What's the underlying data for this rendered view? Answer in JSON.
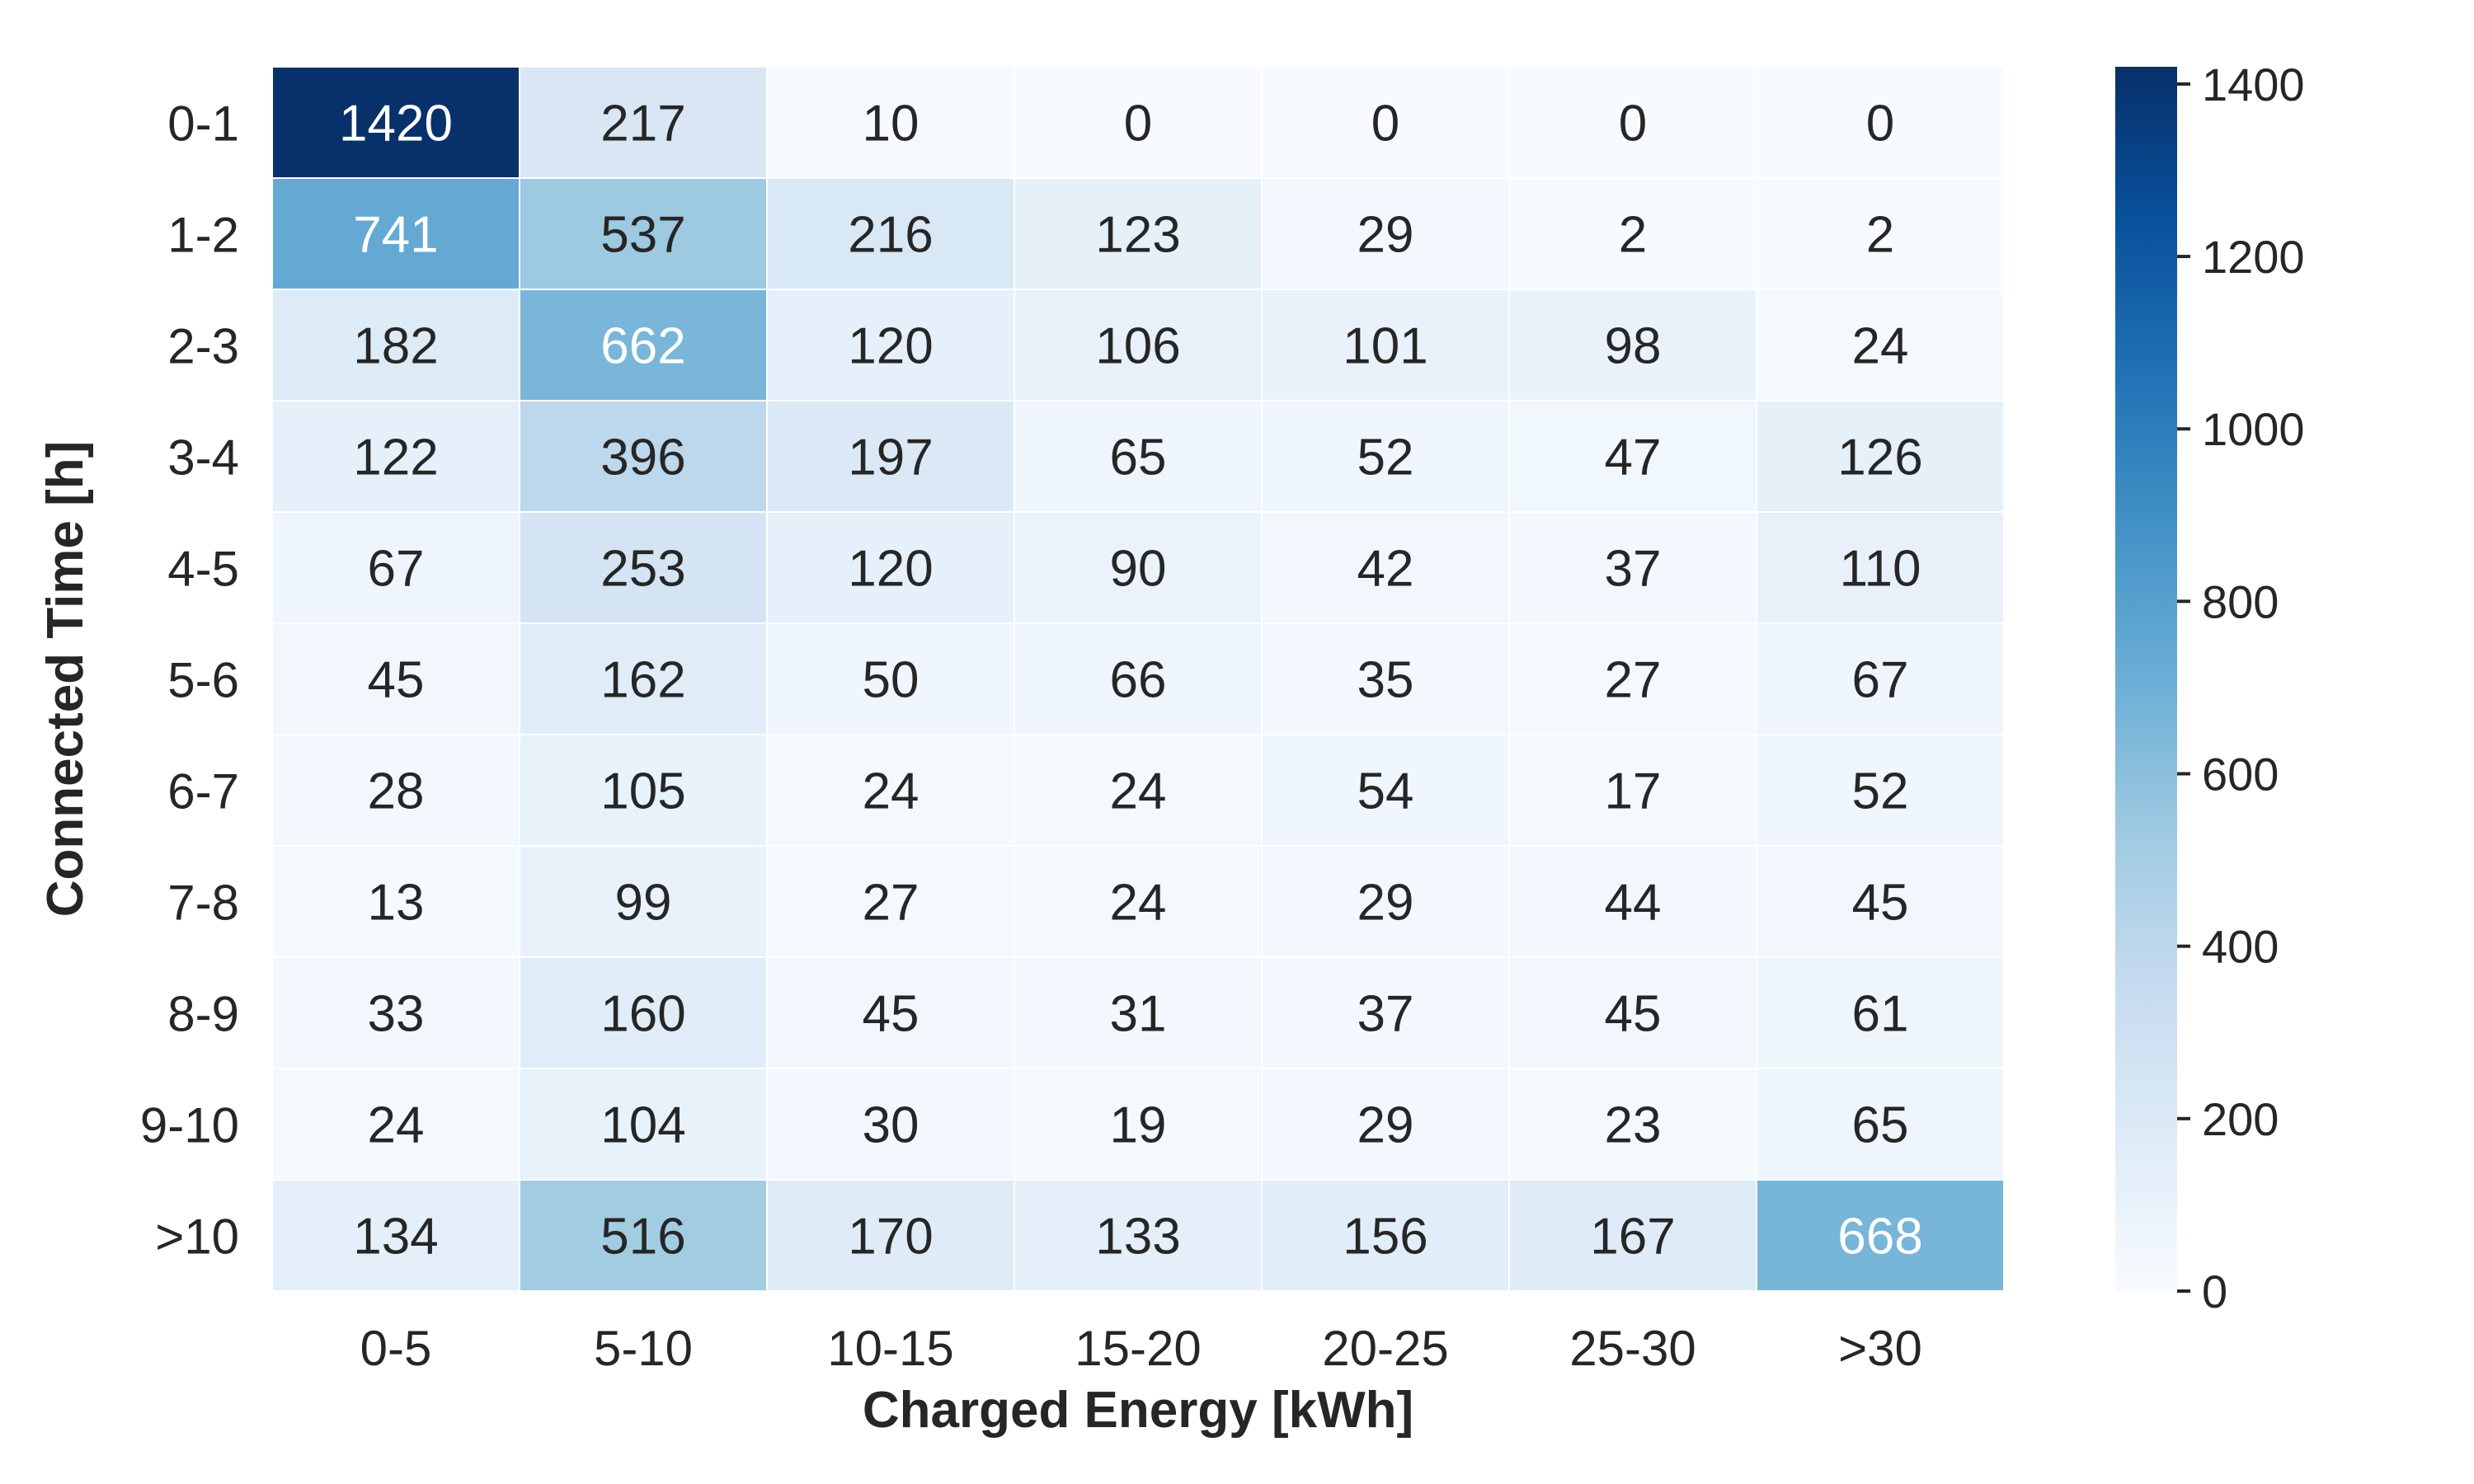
{
  "chart_data": {
    "type": "heatmap",
    "title": "",
    "xlabel": "Charged Energy [kWh]",
    "ylabel": "Connected Time [h]",
    "x_categories": [
      "0-5",
      "5-10",
      "10-15",
      "15-20",
      "20-25",
      "25-30",
      ">30"
    ],
    "y_categories": [
      "0-1",
      "1-2",
      "2-3",
      "3-4",
      "4-5",
      "5-6",
      "6-7",
      "7-8",
      "8-9",
      "9-10",
      ">10"
    ],
    "values": [
      [
        1420,
        217,
        10,
        0,
        0,
        0,
        0
      ],
      [
        741,
        537,
        216,
        123,
        29,
        2,
        2
      ],
      [
        182,
        662,
        120,
        106,
        101,
        98,
        24
      ],
      [
        122,
        396,
        197,
        65,
        52,
        47,
        126
      ],
      [
        67,
        253,
        120,
        90,
        42,
        37,
        110
      ],
      [
        45,
        162,
        50,
        66,
        35,
        27,
        67
      ],
      [
        28,
        105,
        24,
        24,
        54,
        17,
        52
      ],
      [
        13,
        99,
        27,
        24,
        29,
        44,
        45
      ],
      [
        33,
        160,
        45,
        31,
        37,
        45,
        61
      ],
      [
        24,
        104,
        30,
        19,
        29,
        23,
        65
      ],
      [
        134,
        516,
        170,
        133,
        156,
        167,
        668
      ]
    ],
    "colormap": "Blues",
    "colorbar": {
      "range": [
        0,
        1420
      ],
      "ticks": [
        0,
        200,
        400,
        600,
        800,
        1000,
        1200,
        1400
      ],
      "tick_labels": [
        "0",
        "200",
        "400",
        "600",
        "800",
        "1000",
        "1200",
        "1400"
      ]
    },
    "grid": false,
    "annotated": true,
    "colors": {
      "text_dark": "#262626",
      "text_light": "#ffffff",
      "cell_border": "#ffffff",
      "palette": [
        "#f7fbff",
        "#deebf7",
        "#c6dbef",
        "#9ecae1",
        "#6baed6",
        "#4292c6",
        "#2171b5",
        "#08519c",
        "#08306b"
      ]
    }
  }
}
